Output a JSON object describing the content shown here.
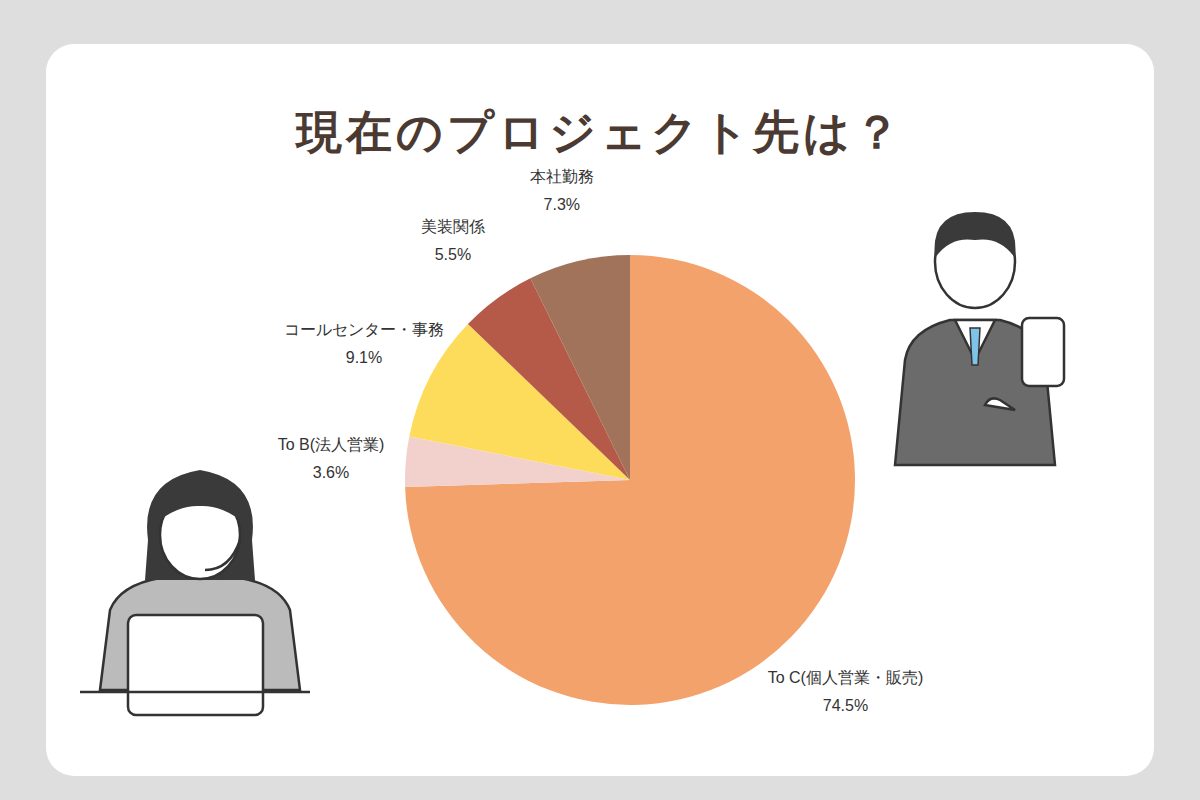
{
  "chart_data": {
    "type": "pie",
    "title": "現在のプロジェクト先は？",
    "categories": [
      "To C(個人営業・販売)",
      "To B(法人営業)",
      "コールセンター・事務",
      "美装関係",
      "本社勤務"
    ],
    "values": [
      74.5,
      3.6,
      9.1,
      5.5,
      7.3
    ],
    "value_labels": [
      "74.5%",
      "3.6%",
      "9.1%",
      "5.5%",
      "7.3%"
    ],
    "colors": [
      "#f4a26b",
      "#f2d0cc",
      "#fddc5c",
      "#b55a48",
      "#a0735a"
    ],
    "data_labels": true
  }
}
